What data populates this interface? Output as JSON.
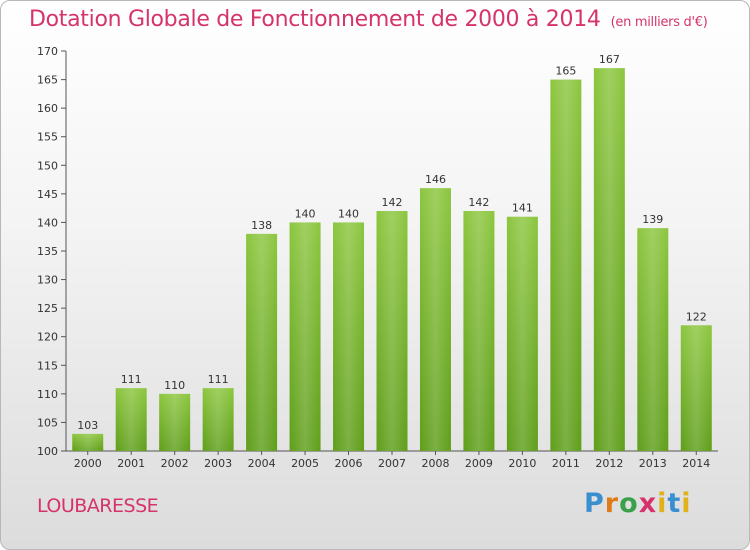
{
  "header": {
    "title": "Dotation Globale de Fonctionnement de 2000 à 2014",
    "unit": "(en milliers d'€)"
  },
  "footer": {
    "commune": "LOUBARESSE",
    "brand": [
      "P",
      "r",
      "o",
      "x",
      "i",
      "t",
      "i"
    ]
  },
  "chart_data": {
    "type": "bar",
    "title": "Dotation Globale de Fonctionnement de 2000 à 2014",
    "subtitle": "(en milliers d'€)",
    "categories": [
      "2000",
      "2001",
      "2002",
      "2003",
      "2004",
      "2005",
      "2006",
      "2007",
      "2008",
      "2009",
      "2010",
      "2011",
      "2012",
      "2013",
      "2014"
    ],
    "values": [
      103,
      111,
      110,
      111,
      138,
      140,
      140,
      142,
      146,
      142,
      141,
      165,
      167,
      139,
      122
    ],
    "ylim": [
      100,
      170
    ],
    "yticks": [
      100,
      105,
      110,
      115,
      120,
      125,
      130,
      135,
      140,
      145,
      150,
      155,
      160,
      165,
      170
    ],
    "grid": false,
    "bar_color": "#8cc63f",
    "bar_color_dark": "#5f9e1a"
  }
}
